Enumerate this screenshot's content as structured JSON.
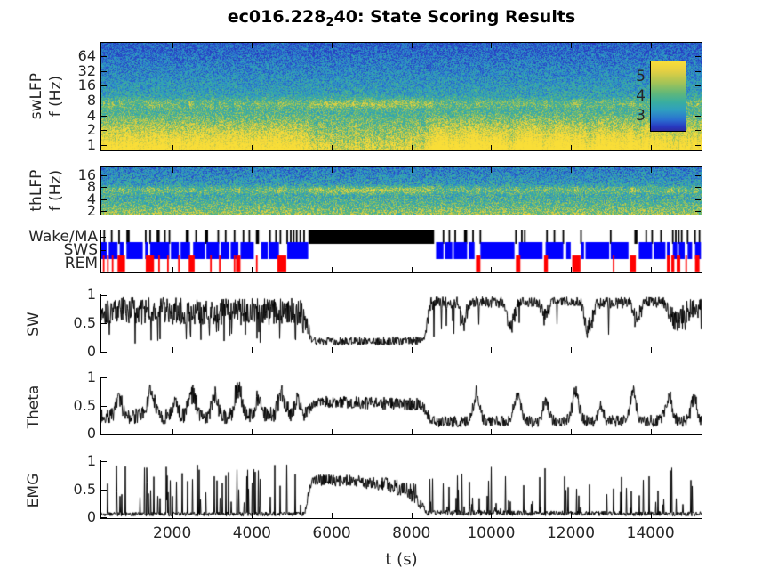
{
  "title": {
    "prefix": "ec016.228",
    "sub": "2",
    "suffix": "40: State Scoring Results"
  },
  "labels": {
    "swlfp_line1": "swLFP",
    "swlfp_line2": "f (Hz)",
    "thlfp_line1": "thLFP",
    "thlfp_line2": "f (Hz)",
    "sw": "SW",
    "theta": "Theta",
    "emg": "EMG"
  },
  "time_axis": {
    "min": 200,
    "max": 15300,
    "ticks": [
      2000,
      4000,
      6000,
      8000,
      10000,
      12000,
      14000
    ],
    "label": "t (s)"
  },
  "colorbar": {
    "labels": [
      "5",
      "4",
      "3"
    ],
    "gradient": [
      "#f9de38 0%",
      "#e3cf43 14%",
      "#a8c455 30%",
      "#64b877 45%",
      "#3aae9e 58%",
      "#2f9fc0 70%",
      "#2a6fd0 84%",
      "#2838c0 94%",
      "#2d2aa0 100%"
    ]
  },
  "colors": {
    "background": "#ffffff",
    "axis": "#000000",
    "trace": "#000000",
    "wake": "#000000",
    "sws": "#0000ff",
    "rem": "#ff0000",
    "colormap_stops": [
      [
        0,
        "#2838c0"
      ],
      [
        0.18,
        "#2a6fd0"
      ],
      [
        0.35,
        "#2f9fc0"
      ],
      [
        0.5,
        "#3aae9e"
      ],
      [
        0.62,
        "#64b877"
      ],
      [
        0.75,
        "#a8c455"
      ],
      [
        0.88,
        "#e3cf43"
      ],
      [
        1,
        "#f9de38"
      ]
    ]
  },
  "chart_data": [
    {
      "type": "heatmap",
      "id": "swlfp-spectrogram",
      "ylabel": "swLFP f (Hz)",
      "yscale": "log2",
      "yticks": [
        64,
        32,
        16,
        8,
        4,
        2,
        1
      ],
      "freq_range": [
        0.75,
        120
      ],
      "colorbar_ticks": [
        5,
        4,
        3
      ],
      "description": "LFP spectrogram: high power (yellow) below 4 Hz during SWS epochs, narrow theta band near 7 Hz (strong during waking 5400-8560 s and REM), blue low power above 16 Hz"
    },
    {
      "type": "heatmap",
      "id": "thlfp-spectrogram",
      "ylabel": "thLFP f (Hz)",
      "yscale": "log2",
      "yticks": [
        16,
        8,
        4,
        2
      ],
      "freq_range": [
        1.6,
        27
      ],
      "description": "Theta-band LFP spectrogram: mottled green/yellow, yellow theta stripe near 6-8 Hz during waking and REM, bluer above 12 Hz"
    },
    {
      "type": "timeline",
      "id": "state-hypnogram",
      "lanes": [
        {
          "name": "Wake/MA",
          "color": "#000000",
          "segments": [
            [
              254,
              294
            ],
            [
              440,
              480
            ],
            [
              626,
              666
            ],
            [
              830,
              910
            ],
            [
              1295,
              1335
            ],
            [
              1407,
              1447
            ],
            [
              1590,
              1665
            ],
            [
              1778,
              1818
            ],
            [
              1890,
              1930
            ],
            [
              2320,
              2400
            ],
            [
              2559,
              2599
            ],
            [
              2800,
              2880
            ],
            [
              3116,
              3156
            ],
            [
              3302,
              3342
            ],
            [
              3525,
              3565
            ],
            [
              3748,
              3788
            ],
            [
              3897,
              3937
            ],
            [
              4080,
              4160
            ],
            [
              4417,
              4457
            ],
            [
              4566,
              4606
            ],
            [
              4678,
              4718
            ],
            [
              4849,
              4889
            ],
            [
              4938,
              4978
            ],
            [
              5012,
              5052
            ],
            [
              5087,
              5127
            ],
            [
              5176,
              5216
            ],
            [
              5272,
              5312
            ],
            [
              5400,
              8560
            ],
            [
              8774,
              8814
            ],
            [
              8923,
              8963
            ],
            [
              9071,
              9111
            ],
            [
              9310,
              9390
            ],
            [
              9518,
              9558
            ],
            [
              9703,
              9743
            ],
            [
              10596,
              10636
            ],
            [
              10744,
              10784
            ],
            [
              10819,
              10859
            ],
            [
              11376,
              11416
            ],
            [
              11562,
              11602
            ],
            [
              11785,
              11825
            ],
            [
              12231,
              12271
            ],
            [
              12975,
              13015
            ],
            [
              13590,
              13665
            ],
            [
              13867,
              13907
            ],
            [
              14016,
              14056
            ],
            [
              14239,
              14279
            ],
            [
              14536,
              14576
            ],
            [
              14610,
              14650
            ],
            [
              14685,
              14725
            ],
            [
              14759,
              14799
            ],
            [
              14908,
              14948
            ],
            [
              15094,
              15134
            ],
            [
              15205,
              15245
            ]
          ]
        },
        {
          "name": "SWS",
          "color": "#0000ff",
          "segments": [
            [
              200,
              334
            ],
            [
              386,
              609
            ],
            [
              661,
              758
            ],
            [
              832,
              1241
            ],
            [
              1300,
              1375
            ],
            [
              1427,
              1910
            ],
            [
              1947,
              2148
            ],
            [
              2192,
              2430
            ],
            [
              2505,
              2802
            ],
            [
              2839,
              3159
            ],
            [
              3196,
              3412
            ],
            [
              3449,
              3642
            ],
            [
              3694,
              4029
            ],
            [
              4214,
              4378
            ],
            [
              4400,
              4661
            ],
            [
              4869,
              5395
            ],
            [
              8608,
              8794
            ],
            [
              8831,
              9017
            ],
            [
              9054,
              9389
            ],
            [
              9426,
              9575
            ],
            [
              9723,
              10579
            ],
            [
              10690,
              11285
            ],
            [
              11359,
              11805
            ],
            [
              11879,
              11991
            ],
            [
              12251,
              12326
            ],
            [
              12363,
              12958
            ],
            [
              12995,
              13441
            ],
            [
              13701,
              14036
            ],
            [
              14073,
              14371
            ],
            [
              14408,
              14482
            ],
            [
              14556,
              14668
            ],
            [
              14705,
              14854
            ],
            [
              14928,
              15040
            ],
            [
              15114,
              15262
            ]
          ]
        },
        {
          "name": "REM",
          "color": "#ff0000",
          "segments": [
            [
              239,
              279
            ],
            [
              344,
              384
            ],
            [
              463,
              503
            ],
            [
              609,
              795
            ],
            [
              1315,
              1523
            ],
            [
              1630,
              1670
            ],
            [
              1853,
              1893
            ],
            [
              2128,
              2168
            ],
            [
              2395,
              2435
            ],
            [
              2430,
              2542
            ],
            [
              2931,
              2971
            ],
            [
              3154,
              3194
            ],
            [
              3525,
              3565
            ],
            [
              3582,
              3694
            ],
            [
              4083,
              4123
            ],
            [
              4623,
              4846
            ],
            [
              9612,
              9723
            ],
            [
              10616,
              10727
            ],
            [
              11322,
              11419
            ],
            [
              12028,
              12236
            ],
            [
              13049,
              13089
            ],
            [
              13478,
              13627
            ],
            [
              14408,
              14482
            ],
            [
              14519,
              14593
            ],
            [
              14653,
              14742
            ],
            [
              14871,
              14911
            ],
            [
              15114,
              15225
            ]
          ]
        }
      ]
    },
    {
      "type": "line",
      "id": "sw-metric",
      "ylabel": "SW",
      "ylim": [
        0,
        1
      ],
      "yticks": [
        {
          "v": 1,
          "label": "1"
        },
        {
          "v": 0.5,
          "label": "0.5"
        },
        {
          "v": 0,
          "label": "0"
        }
      ],
      "envelope": [
        [
          200,
          0.72,
          0.24
        ],
        [
          5250,
          0.7,
          0.24
        ],
        [
          5500,
          0.18,
          0.07
        ],
        [
          8300,
          0.19,
          0.08
        ],
        [
          8480,
          0.85,
          0.13
        ],
        [
          9150,
          0.86,
          0.1
        ],
        [
          9300,
          0.5,
          0.22
        ],
        [
          9480,
          0.88,
          0.09
        ],
        [
          10300,
          0.86,
          0.11
        ],
        [
          10480,
          0.38,
          0.18
        ],
        [
          10680,
          0.88,
          0.09
        ],
        [
          11200,
          0.86,
          0.1
        ],
        [
          11340,
          0.52,
          0.22
        ],
        [
          11520,
          0.9,
          0.07
        ],
        [
          12250,
          0.87,
          0.09
        ],
        [
          12420,
          0.36,
          0.18
        ],
        [
          12650,
          0.85,
          0.11
        ],
        [
          13480,
          0.86,
          0.1
        ],
        [
          13650,
          0.52,
          0.22
        ],
        [
          13850,
          0.88,
          0.08
        ],
        [
          14350,
          0.85,
          0.11
        ],
        [
          14650,
          0.48,
          0.22
        ],
        [
          14950,
          0.72,
          0.2
        ],
        [
          15300,
          0.78,
          0.16
        ]
      ],
      "downspikes": [
        [
          200,
          5300,
          0.06,
          0.12,
          0.4
        ],
        [
          8480,
          15300,
          0.04,
          0.25,
          0.55
        ]
      ]
    },
    {
      "type": "line",
      "id": "theta-metric",
      "ylabel": "Theta",
      "ylim": [
        0,
        1
      ],
      "yticks": [
        {
          "v": 1,
          "label": "1"
        },
        {
          "v": 0.5,
          "label": "0.5"
        },
        {
          "v": 0,
          "label": "0"
        }
      ],
      "envelope": [
        [
          200,
          0.3,
          0.14
        ],
        [
          5250,
          0.33,
          0.15
        ],
        [
          5600,
          0.57,
          0.1
        ],
        [
          8250,
          0.52,
          0.12
        ],
        [
          8480,
          0.21,
          0.1
        ],
        [
          15300,
          0.23,
          0.11
        ]
      ],
      "bumps": [
        [
          650,
          110,
          0.3
        ],
        [
          1450,
          140,
          0.38
        ],
        [
          2050,
          90,
          0.28
        ],
        [
          2480,
          130,
          0.42
        ],
        [
          3050,
          110,
          0.32
        ],
        [
          3640,
          110,
          0.52
        ],
        [
          4150,
          90,
          0.3
        ],
        [
          4730,
          130,
          0.38
        ],
        [
          5120,
          90,
          0.28
        ],
        [
          9620,
          120,
          0.45
        ],
        [
          10660,
          120,
          0.5
        ],
        [
          11370,
          100,
          0.4
        ],
        [
          12120,
          120,
          0.55
        ],
        [
          12750,
          90,
          0.28
        ],
        [
          13550,
          120,
          0.5
        ],
        [
          14450,
          120,
          0.42
        ],
        [
          15080,
          100,
          0.4
        ]
      ]
    },
    {
      "type": "line",
      "id": "emg-metric",
      "ylabel": "EMG",
      "ylim": [
        0,
        1
      ],
      "yticks": [
        {
          "v": 1,
          "label": "1"
        },
        {
          "v": 0.5,
          "label": "0.5"
        },
        {
          "v": 0,
          "label": "0"
        }
      ],
      "envelope": [
        [
          200,
          0.055,
          0.035
        ],
        [
          5300,
          0.06,
          0.04
        ],
        [
          5480,
          0.67,
          0.1
        ],
        [
          6600,
          0.64,
          0.11
        ],
        [
          7400,
          0.58,
          0.13
        ],
        [
          8100,
          0.42,
          0.18
        ],
        [
          8350,
          0.08,
          0.05
        ],
        [
          15300,
          0.06,
          0.04
        ]
      ],
      "spikes": [
        [
          200,
          5350,
          0.13,
          0.2,
          0.95
        ],
        [
          8400,
          15300,
          0.08,
          0.15,
          0.9
        ]
      ]
    }
  ]
}
